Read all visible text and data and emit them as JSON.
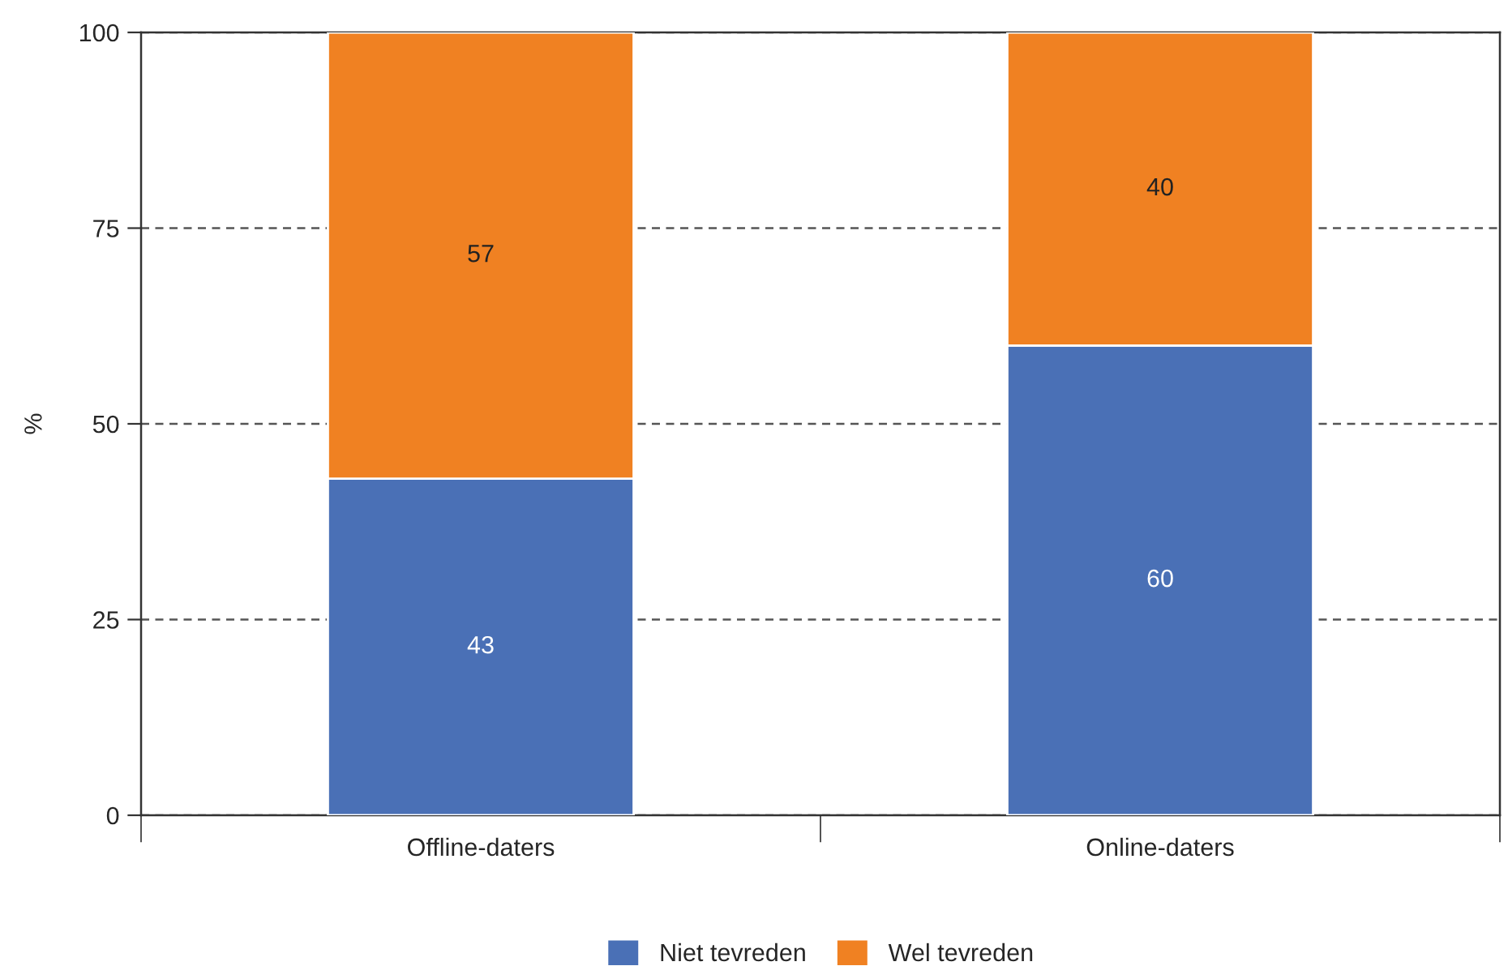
{
  "chart_data": {
    "type": "bar",
    "ylabel": "%",
    "categories": [
      "Offline-daters",
      "Online-daters"
    ],
    "series": [
      {
        "name": "Niet tevreden",
        "color": "#4a70b6",
        "values": [
          43,
          60
        ]
      },
      {
        "name": "Wel tevreden",
        "color": "#f08122",
        "values": [
          57,
          40
        ]
      }
    ],
    "stacked": true,
    "ylim": [
      0,
      100
    ],
    "yticks": [
      0,
      25,
      50,
      75,
      100
    ],
    "grid": "y",
    "legend": "bottom",
    "data_labels": true
  }
}
